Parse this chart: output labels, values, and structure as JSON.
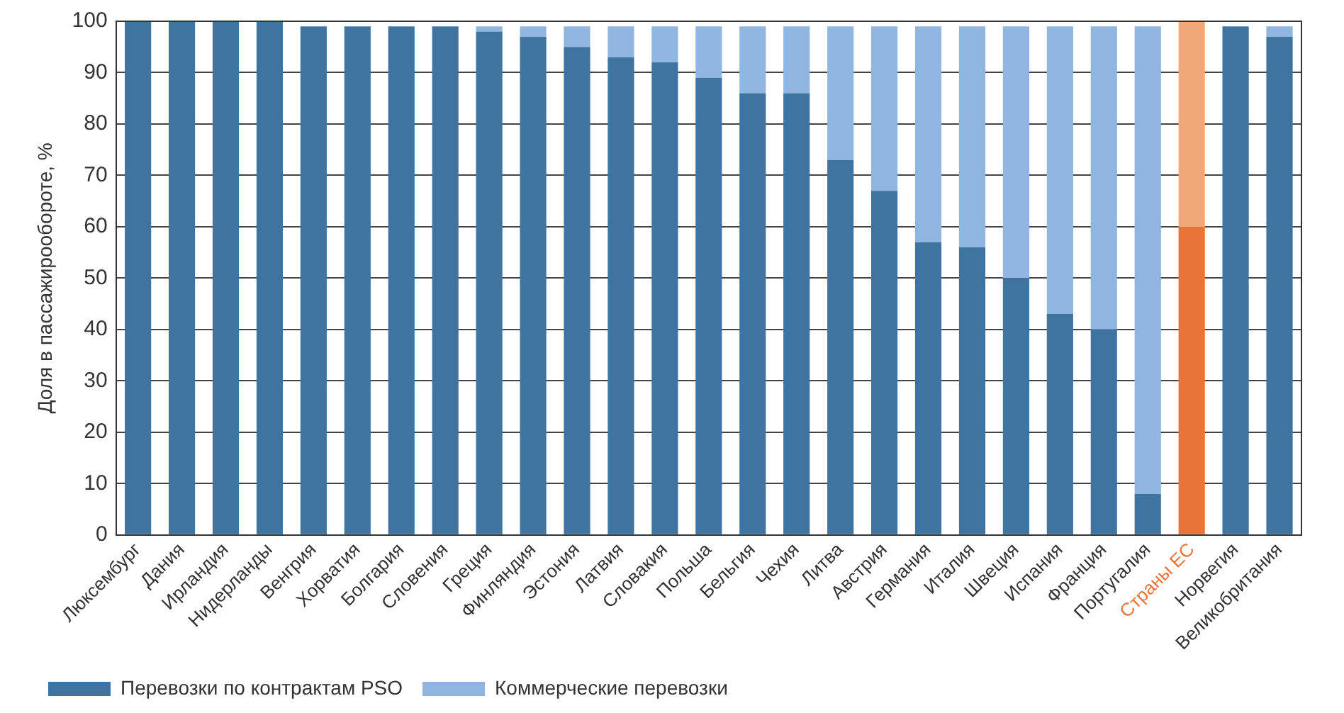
{
  "chart_data": {
    "type": "bar",
    "stacked": true,
    "ylabel": "Доля в пассажирообороте, %",
    "categories": [
      "Люксембург",
      "Дания",
      "Ирландия",
      "Нидерланды",
      "Венгрия",
      "Хорватия",
      "Болгария",
      "Словения",
      "Греция",
      "Финляндия",
      "Эстония",
      "Латвия",
      "Словакия",
      "Польша",
      "Бельгия",
      "Чехия",
      "Литва",
      "Австрия",
      "Германия",
      "Италия",
      "Швеция",
      "Испания",
      "Франция",
      "Португалия",
      "Страны ЕС",
      "Норвегия",
      "Великобритания"
    ],
    "series": [
      {
        "name": "Перевозки по контрактам PSO",
        "color": "#3f74a1",
        "colors": [
          "#3f74a1",
          "#3f74a1",
          "#3f74a1",
          "#3f74a1",
          "#3f74a1",
          "#3f74a1",
          "#3f74a1",
          "#3f74a1",
          "#3f74a1",
          "#3f74a1",
          "#3f74a1",
          "#3f74a1",
          "#3f74a1",
          "#3f74a1",
          "#3f74a1",
          "#3f74a1",
          "#3f74a1",
          "#3f74a1",
          "#3f74a1",
          "#3f74a1",
          "#3f74a1",
          "#3f74a1",
          "#3f74a1",
          "#3f74a1",
          "#e8743a",
          "#3f74a1",
          "#3f74a1"
        ],
        "values": [
          100,
          100,
          100,
          100,
          99,
          99,
          99,
          99,
          98,
          97,
          95,
          93,
          92,
          89,
          86,
          86,
          73,
          67,
          57,
          56,
          50,
          43,
          40,
          8,
          60,
          99,
          97
        ]
      },
      {
        "name": "Коммерческие перевозки",
        "color": "#90b5de",
        "colors": [
          "#90b5de",
          "#90b5de",
          "#90b5de",
          "#90b5de",
          "#90b5de",
          "#90b5de",
          "#90b5de",
          "#90b5de",
          "#90b5de",
          "#90b5de",
          "#90b5de",
          "#90b5de",
          "#90b5de",
          "#90b5de",
          "#90b5de",
          "#90b5de",
          "#90b5de",
          "#90b5de",
          "#90b5de",
          "#90b5de",
          "#90b5de",
          "#90b5de",
          "#90b5de",
          "#90b5de",
          "#f0a878",
          "#90b5de",
          "#90b5de"
        ],
        "values": [
          0,
          0,
          0,
          0,
          0,
          0,
          0,
          0,
          1,
          2,
          4,
          6,
          7,
          10,
          13,
          13,
          26,
          32,
          42,
          43,
          49,
          56,
          59,
          91,
          40,
          0,
          2
        ]
      }
    ],
    "ylim": [
      0,
      100
    ],
    "yticks": [
      0,
      10,
      20,
      30,
      40,
      50,
      60,
      70,
      80,
      90,
      100
    ],
    "grid": "y",
    "legend": "bottom"
  }
}
